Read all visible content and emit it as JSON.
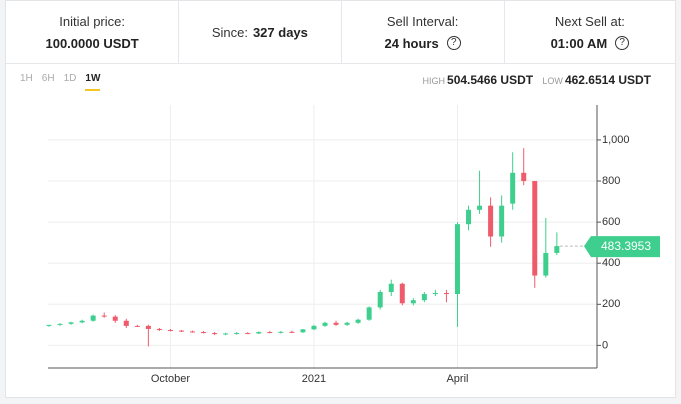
{
  "header": {
    "cells": [
      {
        "label": "Initial price:",
        "value": "100.0000 USDT"
      },
      {
        "label": "Since:",
        "value": "327 days"
      },
      {
        "label": "Sell Interval:",
        "value": "24 hours"
      },
      {
        "label": "Next Sell at:",
        "value": "01:00 AM"
      }
    ]
  },
  "controls": {
    "tabs": [
      "1H",
      "6H",
      "1D",
      "1W"
    ],
    "active_tab": 3,
    "high_label": "HIGH",
    "high_value": "504.5466 USDT",
    "low_label": "LOW",
    "low_value": "462.6514 USDT"
  },
  "chart_data": {
    "type": "candlestick",
    "categories": [
      null,
      null,
      null,
      null,
      null,
      null,
      null,
      null,
      null,
      null,
      null,
      "October",
      null,
      null,
      null,
      null,
      null,
      null,
      null,
      null,
      null,
      null,
      null,
      null,
      "2021",
      null,
      null,
      null,
      null,
      null,
      null,
      null,
      null,
      null,
      null,
      null,
      null,
      "April",
      null,
      null,
      null,
      null,
      null,
      null,
      null,
      null,
      null
    ],
    "open": [
      95,
      100,
      105,
      112,
      120,
      145,
      140,
      120,
      95,
      95,
      80,
      75,
      72,
      68,
      65,
      60,
      55,
      58,
      60,
      58,
      65,
      62,
      66,
      64,
      78,
      95,
      110,
      100,
      110,
      125,
      185,
      260,
      300,
      205,
      220,
      250,
      255,
      250,
      590,
      660,
      680,
      530,
      690,
      840,
      800,
      340,
      450
    ],
    "high": [
      100,
      108,
      115,
      125,
      150,
      160,
      148,
      130,
      100,
      100,
      85,
      80,
      75,
      72,
      70,
      65,
      62,
      65,
      64,
      68,
      70,
      70,
      72,
      80,
      100,
      115,
      120,
      115,
      130,
      190,
      270,
      320,
      305,
      230,
      260,
      270,
      270,
      600,
      680,
      850,
      720,
      730,
      940,
      960,
      800,
      620,
      550
    ],
    "low": [
      90,
      95,
      100,
      108,
      115,
      135,
      110,
      85,
      90,
      -5,
      70,
      68,
      65,
      62,
      58,
      50,
      50,
      52,
      55,
      55,
      60,
      58,
      60,
      60,
      75,
      90,
      95,
      95,
      105,
      120,
      175,
      240,
      195,
      195,
      210,
      240,
      210,
      90,
      560,
      640,
      480,
      500,
      660,
      780,
      280,
      330,
      440
    ],
    "close": [
      100,
      105,
      112,
      120,
      145,
      140,
      120,
      95,
      92,
      80,
      75,
      72,
      68,
      65,
      60,
      55,
      58,
      60,
      58,
      65,
      62,
      66,
      64,
      78,
      95,
      110,
      100,
      110,
      125,
      185,
      260,
      300,
      205,
      220,
      250,
      255,
      250,
      590,
      660,
      680,
      530,
      680,
      840,
      800,
      340,
      450,
      483.3953
    ],
    "up_color": "#3ecf8e",
    "down_color": "#ef5b6b",
    "ylim": [
      -110,
      1170
    ],
    "yticks": [
      0,
      200,
      400,
      600,
      800,
      {
        "value": 1000,
        "label": "1,000"
      }
    ],
    "grid": true
  }
}
